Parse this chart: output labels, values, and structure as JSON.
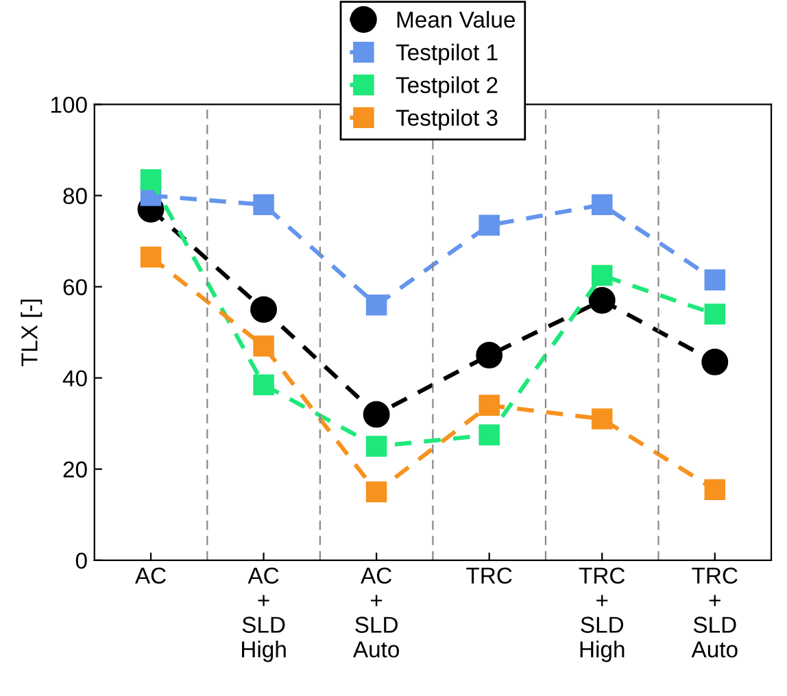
{
  "chart_data": {
    "type": "line",
    "ylabel": "TLX [-]",
    "categories": [
      "AC",
      "AC\n+\nSLD\nHigh",
      "AC\n+\nSLD\nAuto",
      "TRC",
      "TRC\n+\nSLD\nHigh",
      "TRC\n+\nSLD\nAuto"
    ],
    "series": [
      {
        "name": "Mean Value",
        "color": "#000000",
        "marker": "circle",
        "values": [
          77,
          55,
          32,
          45,
          57,
          43.5
        ]
      },
      {
        "name": "Testpilot 1",
        "color": "#6495ed",
        "marker": "square",
        "values": [
          80,
          78,
          56,
          73.5,
          78,
          61.5
        ]
      },
      {
        "name": "Testpilot 2",
        "color": "#1ee87a",
        "marker": "square",
        "values": [
          83.5,
          38.5,
          25,
          27.5,
          62.5,
          54
        ]
      },
      {
        "name": "Testpilot 3",
        "color": "#f7921e",
        "marker": "square",
        "values": [
          66.5,
          47,
          15,
          34,
          31,
          15.5
        ]
      }
    ],
    "ylim": [
      0,
      100
    ],
    "yticks": [
      0,
      20,
      40,
      60,
      80,
      100
    ],
    "line_style": "dashed",
    "grid": "x",
    "legend": "top"
  }
}
